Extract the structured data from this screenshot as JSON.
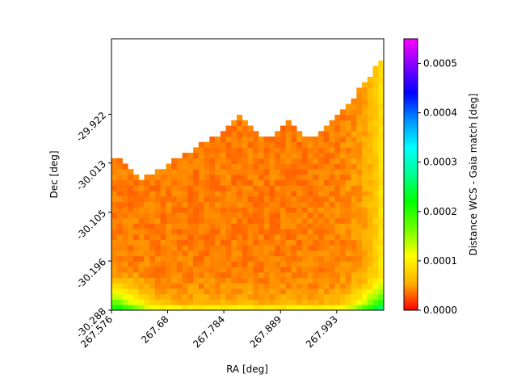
{
  "chart_data": {
    "type": "heatmap",
    "title": "",
    "xlabel": "RA [deg]",
    "ylabel": "Dec [deg]",
    "xlim": [
      267.576,
      268.08
    ],
    "ylim": [
      -30.288,
      -29.781
    ],
    "x_ticks": [
      "267.576",
      "267.68",
      "267.784",
      "267.889",
      "267.993"
    ],
    "y_ticks": [
      "-30.288",
      "-30.196",
      "-30.105",
      "-30.013",
      "-29.922"
    ],
    "colorbar": {
      "label": "Distance WCS - Gaia match [deg]",
      "min": 0.0,
      "max": 0.00055,
      "ticks": [
        "0.0000",
        "0.0001",
        "0.0002",
        "0.0003",
        "0.0004",
        "0.0005"
      ],
      "colormap": "gist_rainbow_r",
      "colors": [
        "#ff0000",
        "#ffb000",
        "#ffff00",
        "#70ff00",
        "#00ff00",
        "#00ff90",
        "#00ffff",
        "#0090ff",
        "#0000ff",
        "#8000ff",
        "#ff00ff"
      ]
    },
    "grid": {
      "cols": 50,
      "rows": 50,
      "coverage_top_edge_dec": [
        -30.0,
        -30.008,
        -30.016,
        -30.024,
        -30.033,
        -30.041,
        -30.037,
        -30.031,
        -30.026,
        -30.02,
        -30.014,
        -30.008,
        -30.002,
        -29.996,
        -29.99,
        -29.984,
        -29.978,
        -29.971,
        -29.965,
        -29.959,
        -29.95,
        -29.941,
        -29.932,
        -29.923,
        -29.932,
        -29.941,
        -29.95,
        -29.959,
        -29.968,
        -29.959,
        -29.95,
        -29.941,
        -29.932,
        -29.941,
        -29.95,
        -29.959,
        -29.968,
        -29.961,
        -29.953,
        -29.944,
        -29.935,
        -29.926,
        -29.917,
        -29.903,
        -29.89,
        -29.876,
        -29.862,
        -29.849,
        -29.835,
        -29.821
      ],
      "value_model": "near-zero residuals (~0.00003-0.00005 deg) across the field, rising to ~0.0001-0.00015 deg toward the bottom corners and the right edge"
    }
  }
}
